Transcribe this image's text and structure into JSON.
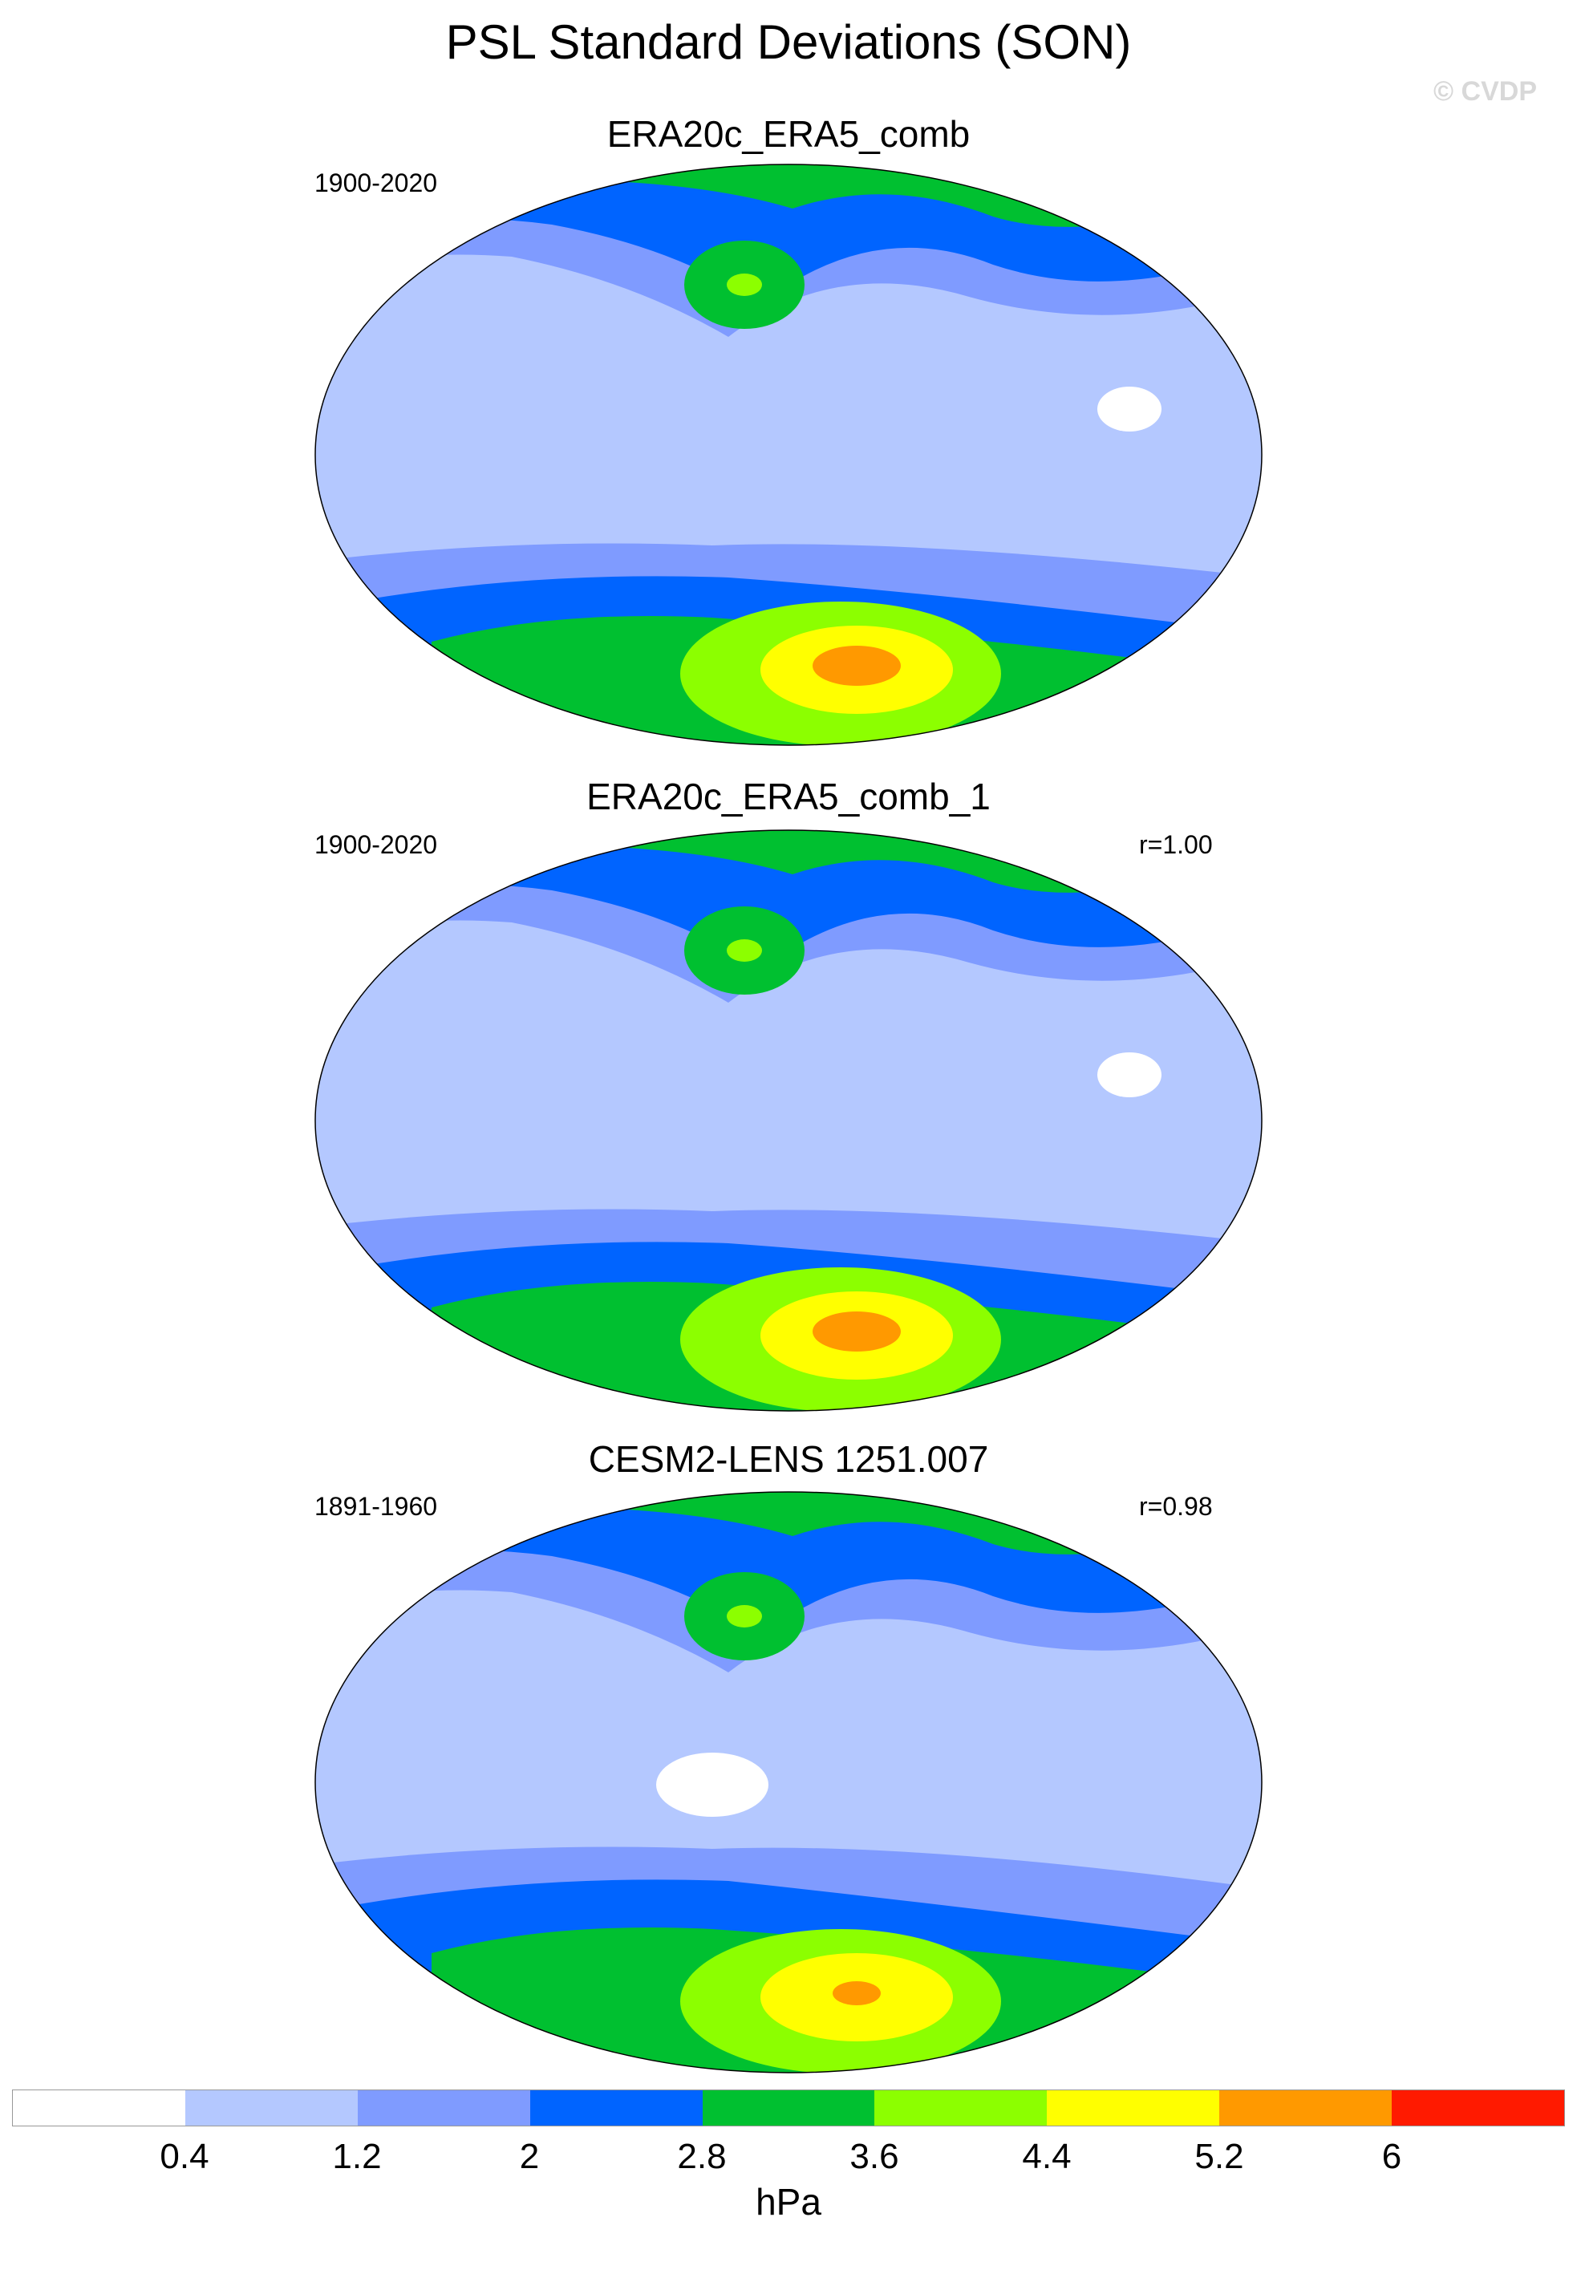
{
  "title": "PSL Standard Deviations (SON)",
  "watermark": "© CVDP",
  "colorbar": {
    "colors": [
      "#ffffff",
      "#b4c8ff",
      "#7f9bff",
      "#0064ff",
      "#00c030",
      "#8cff00",
      "#ffff00",
      "#ff9900",
      "#ff1a00"
    ],
    "levels": [
      "0.4",
      "1.2",
      "2",
      "2.8",
      "3.6",
      "4.4",
      "5.2",
      "6"
    ],
    "units": "hPa"
  },
  "panels": [
    {
      "title": "ERA20c_ERA5_comb",
      "period": "1900-2020",
      "corr": ""
    },
    {
      "title": "ERA20c_ERA5_comb_1",
      "period": "1900-2020",
      "corr": "r=1.00"
    },
    {
      "title": "CESM2-LENS 1251.007",
      "period": "1891-1960",
      "corr": "r=0.98"
    }
  ]
}
